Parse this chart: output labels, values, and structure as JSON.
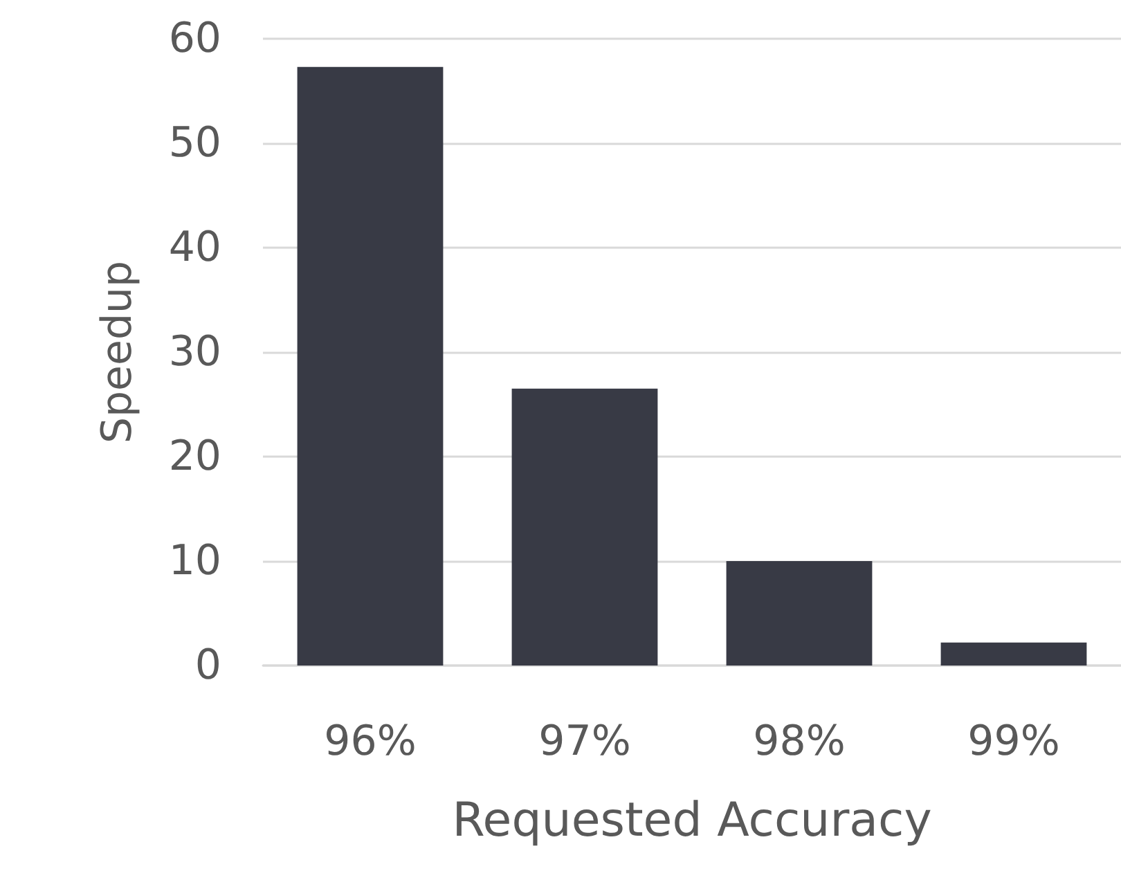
{
  "chart_data": {
    "type": "bar",
    "xlabel": "Requested Accuracy",
    "ylabel": "Speedup",
    "categories": [
      "96%",
      "97%",
      "98%",
      "99%"
    ],
    "values": [
      57.3,
      26.5,
      10,
      2.2
    ],
    "color": "#383a45",
    "ylim": [
      0,
      60
    ],
    "yticks": [
      0,
      10,
      20,
      30,
      40,
      50,
      60
    ],
    "grid": "y"
  }
}
